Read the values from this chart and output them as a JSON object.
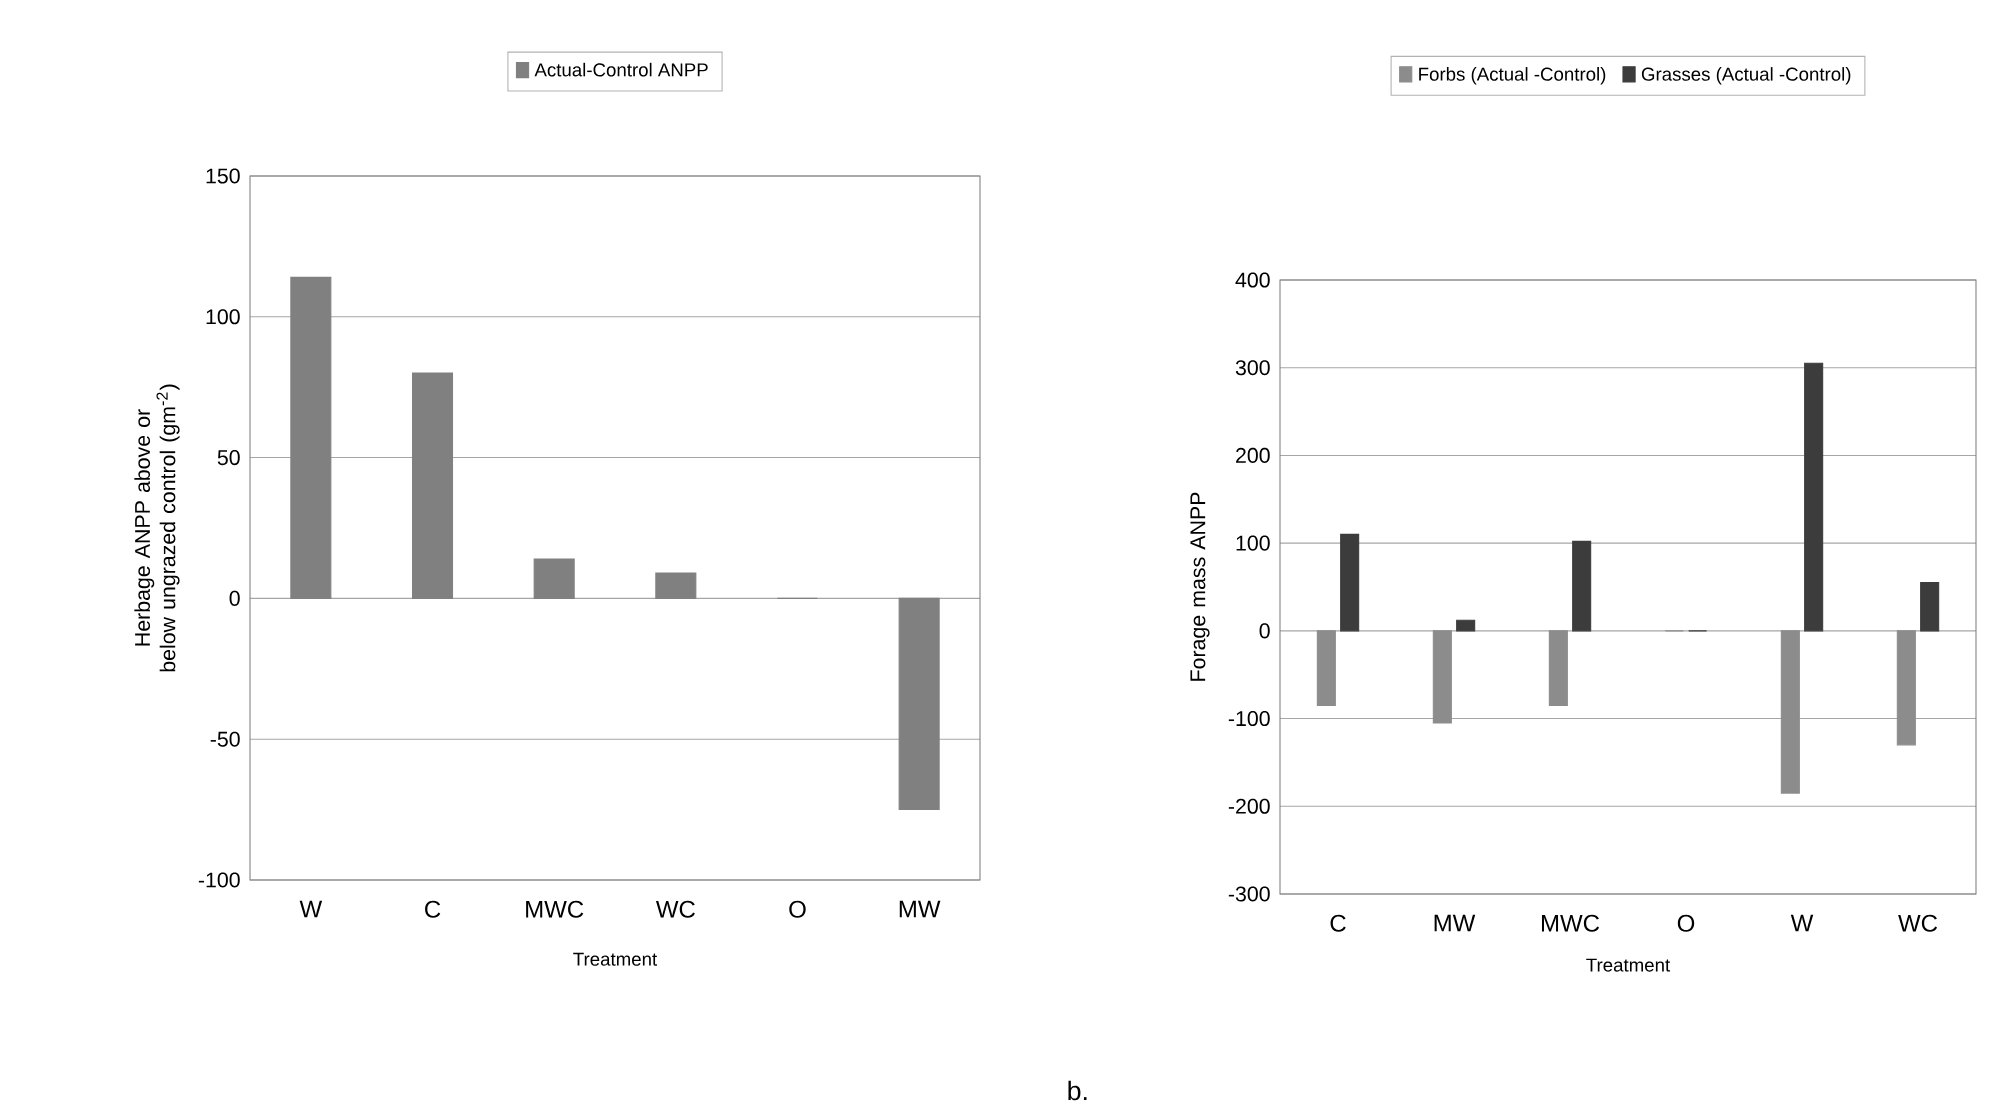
{
  "chart_data": [
    {
      "type": "bar",
      "categories": [
        "W",
        "C",
        "MWC",
        "WC",
        "O",
        "MW"
      ],
      "ylabel": "Herbage ANPP above or below ungrazed control (gm$^{-2}$)",
      "xlabel": "Treatment",
      "series": [
        {
          "name": "Actual-Control ANPP",
          "color": "#808080",
          "values": [
            114,
            80,
            14,
            9,
            0,
            -75
          ]
        }
      ],
      "ylim": [
        -100,
        150
      ],
      "yticks": [
        -100,
        -50,
        0,
        50,
        100,
        150
      ],
      "grid": "y",
      "legend": "top"
    },
    {
      "type": "bar",
      "categories": [
        "C",
        "MW",
        "MWC",
        "O",
        "W",
        "WC"
      ],
      "ylabel": "Forage mass ANPP",
      "xlabel": "Treatment",
      "series": [
        {
          "name": "Forbs (Actual -Control)",
          "color": "#8c8c8c",
          "values": [
            -85,
            -105,
            -85,
            0,
            -185,
            -130
          ]
        },
        {
          "name": "Grasses (Actual -Control)",
          "color": "#3c3c3c",
          "values": [
            110,
            12,
            102,
            0,
            305,
            55
          ]
        }
      ],
      "ylim": [
        -300,
        400
      ],
      "yticks": [
        -300,
        -200,
        -100,
        0,
        100,
        200,
        300,
        400
      ],
      "grid": "y",
      "legend": "top",
      "annotations": [
        "b."
      ]
    }
  ]
}
